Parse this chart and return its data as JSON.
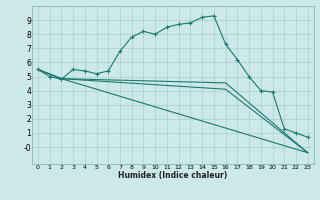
{
  "bg_color": "#cce8e8",
  "grid_color": "#aacfcf",
  "line_color": "#1a7a6e",
  "xlabel": "Humidex (Indice chaleur)",
  "xlim": [
    -0.5,
    23.5
  ],
  "ylim": [
    -1.2,
    10.0
  ],
  "xticks": [
    0,
    1,
    2,
    3,
    4,
    5,
    6,
    7,
    8,
    9,
    10,
    11,
    12,
    13,
    14,
    15,
    16,
    17,
    18,
    19,
    20,
    21,
    22,
    23
  ],
  "yticks": [
    0,
    1,
    2,
    3,
    4,
    5,
    6,
    7,
    8,
    9
  ],
  "ytick_labels": [
    "-0",
    "1",
    "2",
    "3",
    "4",
    "5",
    "6",
    "7",
    "8",
    "9"
  ],
  "line1_x": [
    0,
    1,
    2,
    3,
    4,
    5,
    6,
    7,
    8,
    9,
    10,
    11,
    12,
    13,
    14,
    15,
    16,
    17,
    18,
    19,
    20,
    21,
    22,
    23
  ],
  "line1_y": [
    5.5,
    5.0,
    4.8,
    5.5,
    5.4,
    5.2,
    5.4,
    6.8,
    7.8,
    8.2,
    8.0,
    8.5,
    8.7,
    8.8,
    9.2,
    9.3,
    7.3,
    6.2,
    5.0,
    4.0,
    3.9,
    1.3,
    1.0,
    0.7
  ],
  "line2_x": [
    0,
    2,
    23
  ],
  "line2_y": [
    5.5,
    4.85,
    -0.4
  ],
  "line3_x": [
    0,
    2,
    16,
    23
  ],
  "line3_y": [
    5.5,
    4.85,
    4.1,
    -0.4
  ],
  "line4_x": [
    0,
    2,
    16,
    23
  ],
  "line4_y": [
    5.5,
    4.85,
    4.55,
    -0.4
  ]
}
